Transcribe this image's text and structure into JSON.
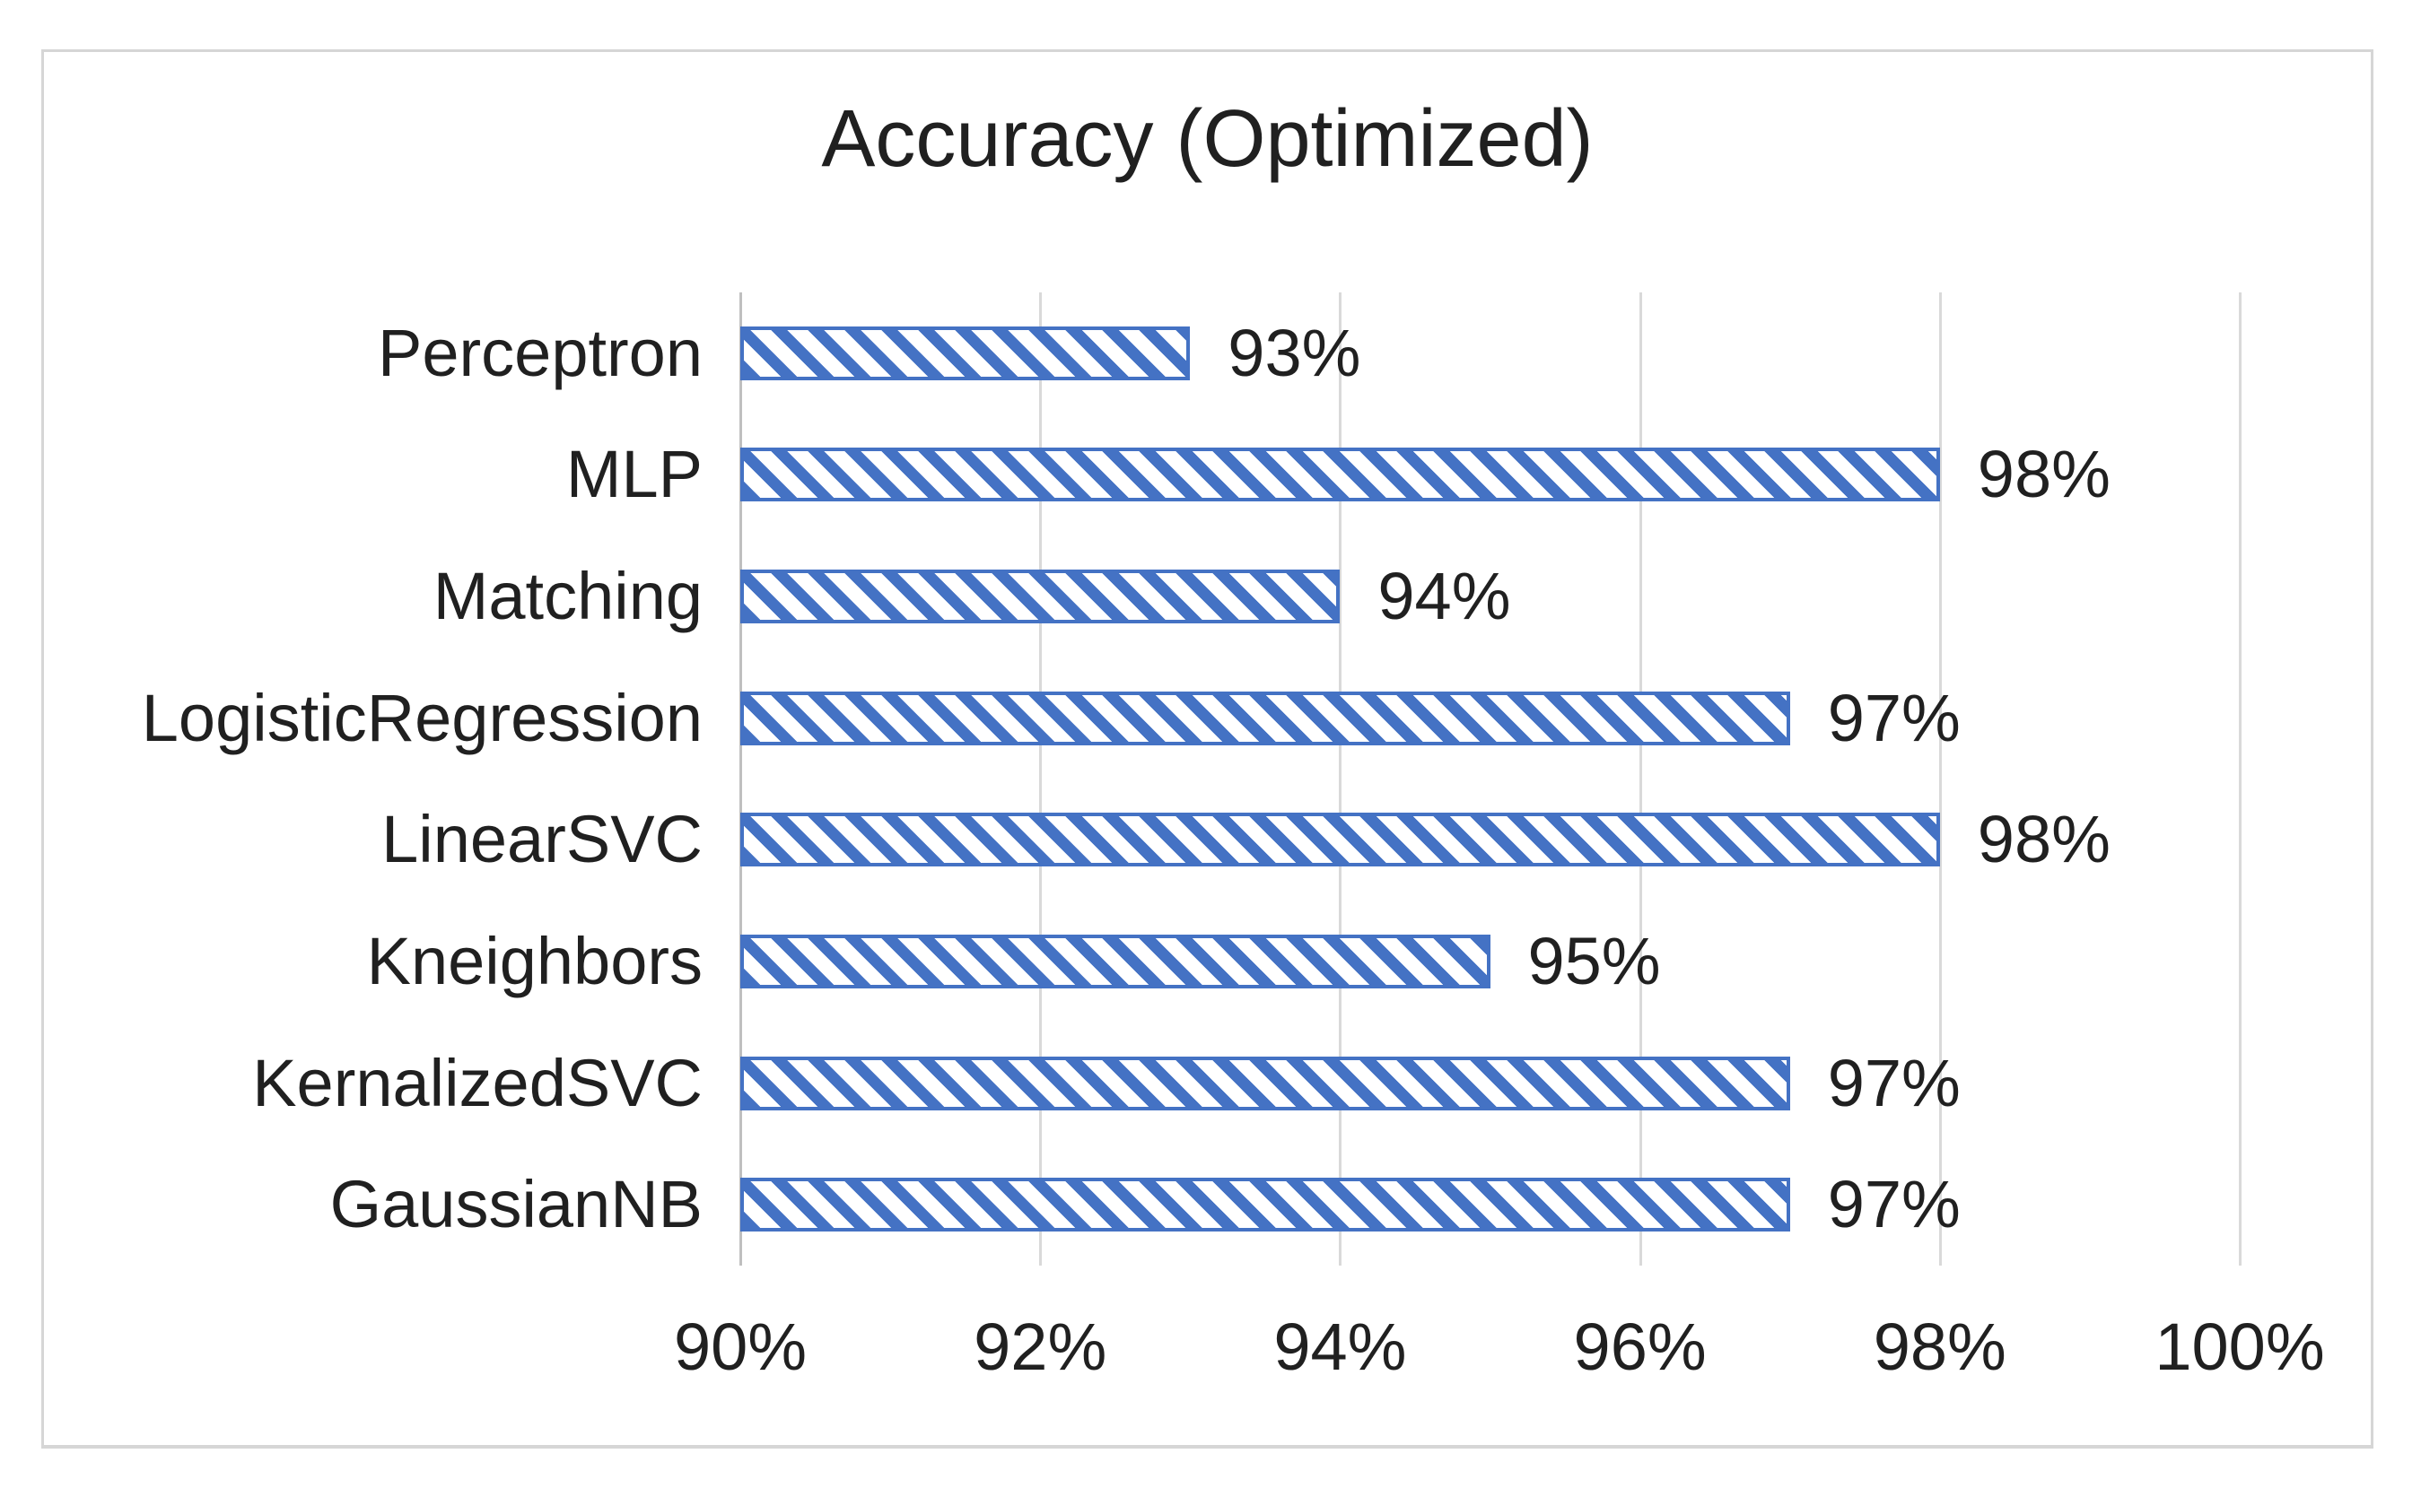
{
  "chart": {
    "title": "Accuracy (Optimized)"
  },
  "chart_data": {
    "type": "bar",
    "orientation": "horizontal",
    "title": "Accuracy (Optimized)",
    "categories": [
      "Perceptron",
      "MLP",
      "Matching",
      "LogisticRegression",
      "LinearSVC",
      "Kneighbors",
      "KernalizedSVC",
      "GaussianNB"
    ],
    "values": [
      93,
      98,
      94,
      97,
      98,
      95,
      97,
      97
    ],
    "value_labels": [
      "93%",
      "98%",
      "94%",
      "97%",
      "98%",
      "95%",
      "97%",
      "97%"
    ],
    "xlabel": "",
    "ylabel": "",
    "xlim": [
      90,
      100
    ],
    "x_ticks": [
      "90%",
      "92%",
      "94%",
      "96%",
      "98%",
      "100%"
    ],
    "x_tick_values": [
      90,
      92,
      94,
      96,
      98,
      100
    ],
    "grid": "vertical-gridlines-on",
    "legend": "none",
    "bar_style": {
      "pattern": "diagonal-stripes",
      "stripe_direction": "backslash"
    }
  },
  "colors": {
    "bar_blue": "#4472C4",
    "gridline": "#D9D9D9",
    "axis_line": "#BFBFBF",
    "text": "#202020",
    "frame_border": "#D6D6D6",
    "background": "#FFFFFF"
  }
}
